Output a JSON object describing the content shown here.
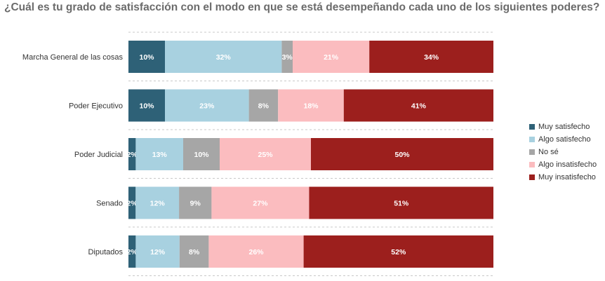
{
  "title": "¿Cuál es tu grado de satisfacción con el modo en que se está desempeñando cada uno de los siguientes poderes?",
  "chart_data": {
    "type": "bar",
    "orientation": "horizontal",
    "stacked": true,
    "percent_stacked": true,
    "categories": [
      "Marcha General de las cosas",
      "Poder Ejecutivo",
      "Poder Judicial",
      "Senado",
      "Diputados"
    ],
    "series": [
      {
        "name": "Muy satisfecho",
        "color": "#2e6177",
        "values": [
          10,
          10,
          2,
          2,
          2
        ]
      },
      {
        "name": "Algo satisfecho",
        "color": "#a8d1e0",
        "values": [
          32,
          23,
          13,
          12,
          12
        ]
      },
      {
        "name": "No sé",
        "color": "#a6a6a6",
        "values": [
          3,
          8,
          10,
          9,
          8
        ]
      },
      {
        "name": "Algo insatisfecho",
        "color": "#fbbcbf",
        "values": [
          21,
          18,
          25,
          27,
          26
        ]
      },
      {
        "name": "Muy insatisfecho",
        "color": "#9c1f1d",
        "values": [
          34,
          41,
          50,
          51,
          52
        ]
      }
    ],
    "value_suffix": "%",
    "grid": "dashed horizontal separators",
    "legend_position": "right"
  }
}
